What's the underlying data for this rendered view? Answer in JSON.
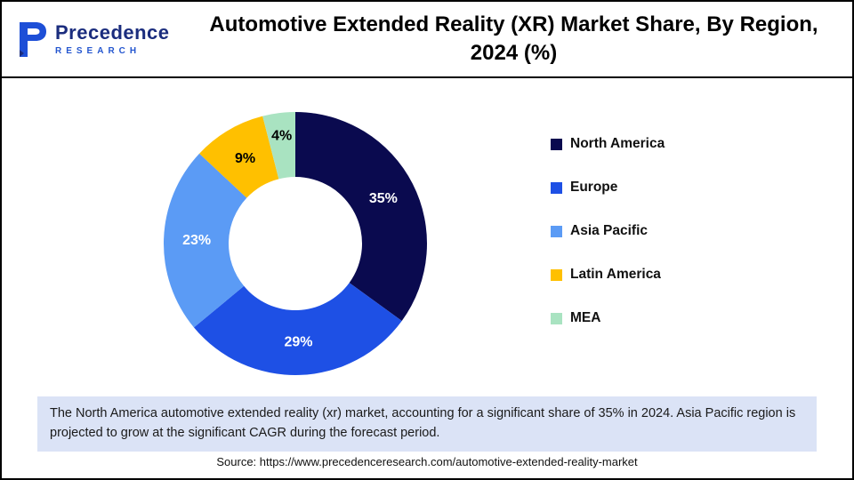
{
  "header": {
    "logo": {
      "brand": "Precedence",
      "sub": "RESEARCH"
    },
    "title_line1": "Automotive Extended Reality (XR) Market Share, By Region,",
    "title_line2": "2024 (%)"
  },
  "chart_data": {
    "type": "pie",
    "donut": true,
    "title": "Automotive Extended Reality (XR) Market Share, By Region, 2024 (%)",
    "categories": [
      "North America",
      "Europe",
      "Asia Pacific",
      "Latin America",
      "MEA"
    ],
    "values": [
      35,
      29,
      23,
      9,
      4
    ],
    "labels": [
      "35%",
      "29%",
      "23%",
      "9%",
      "4%"
    ],
    "colors": [
      "#0A0A4F",
      "#1E50E5",
      "#5B9BF5",
      "#FFC000",
      "#A9E3C1"
    ],
    "label_colors": [
      "#FFFFFF",
      "#FFFFFF",
      "#FFFFFF",
      "#000000",
      "#000000"
    ],
    "label_radii": [
      111,
      111,
      111,
      111,
      122
    ],
    "start_angle_deg": 0,
    "direction": "clockwise",
    "legend_position": "right"
  },
  "note": {
    "text": "The North America automotive extended reality (xr) market, accounting for a significant share of 35% in 2024. Asia Pacific region is projected to grow at the significant CAGR during the forecast period."
  },
  "source": {
    "text": "Source: https://www.precedenceresearch.com/automotive-extended-reality-market"
  }
}
